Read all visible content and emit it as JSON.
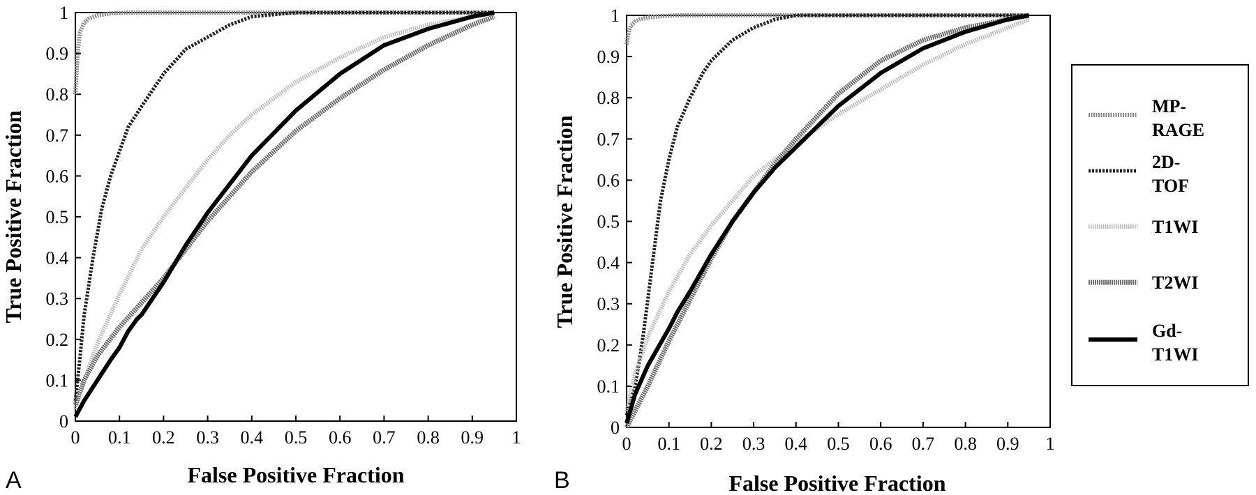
{
  "colors": {
    "MP-RAGE": "#8a8a8a",
    "2D-TOF": "#222222",
    "T1WI": "#b4b4b4",
    "T2WI": "#6e6e6e",
    "Gd-T1WI": "#000000"
  },
  "legend": [
    {
      "line1": "MP-",
      "line2": "RAGE",
      "style": "hatched"
    },
    {
      "line1": "2D-",
      "line2": "TOF",
      "style": "dashed"
    },
    {
      "line1": "T1WI",
      "line2": "",
      "style": "dotted"
    },
    {
      "line1": "T2WI",
      "line2": "",
      "style": "hatched"
    },
    {
      "line1": "Gd-",
      "line2": "T1WI",
      "style": "solid"
    }
  ],
  "chart_data": [
    {
      "type": "line",
      "panel_label": "A",
      "xlabel": "False Positive Fraction",
      "ylabel": "True Positive Fraction",
      "xlim": [
        0,
        1
      ],
      "ylim": [
        0,
        1
      ],
      "xticks": [
        "0",
        "0.1",
        "0.2",
        "0.3",
        "0.4",
        "0.5",
        "0.6",
        "0.7",
        "0.8",
        "0.9",
        "1"
      ],
      "yticks": [
        "0",
        "0.1",
        "0.2",
        "0.3",
        "0.4",
        "0.5",
        "0.6",
        "0.7",
        "0.8",
        "0.9",
        "1"
      ],
      "grid": false,
      "series": [
        {
          "name": "MP-RAGE",
          "x": [
            0,
            0.005,
            0.01,
            0.02,
            0.03,
            0.05,
            0.08,
            0.12,
            0.2,
            0.4,
            0.7,
            0.95
          ],
          "y": [
            0.8,
            0.9,
            0.95,
            0.975,
            0.985,
            0.993,
            0.998,
            1,
            1,
            1,
            1,
            1
          ]
        },
        {
          "name": "2D-TOF",
          "x": [
            0,
            0.01,
            0.02,
            0.04,
            0.06,
            0.08,
            0.1,
            0.12,
            0.15,
            0.2,
            0.25,
            0.3,
            0.35,
            0.4,
            0.5,
            0.6,
            0.95
          ],
          "y": [
            0.05,
            0.15,
            0.26,
            0.4,
            0.52,
            0.6,
            0.66,
            0.72,
            0.77,
            0.85,
            0.91,
            0.94,
            0.97,
            0.99,
            1,
            1,
            1
          ]
        },
        {
          "name": "T1WI",
          "x": [
            0,
            0.02,
            0.05,
            0.1,
            0.15,
            0.2,
            0.25,
            0.3,
            0.35,
            0.4,
            0.5,
            0.6,
            0.7,
            0.8,
            0.9,
            0.95
          ],
          "y": [
            0.03,
            0.1,
            0.19,
            0.31,
            0.42,
            0.5,
            0.57,
            0.64,
            0.7,
            0.75,
            0.83,
            0.89,
            0.94,
            0.97,
            0.99,
            1
          ]
        },
        {
          "name": "T2WI",
          "x": [
            0,
            0.02,
            0.05,
            0.1,
            0.15,
            0.2,
            0.25,
            0.3,
            0.35,
            0.4,
            0.5,
            0.6,
            0.7,
            0.8,
            0.9,
            0.95
          ],
          "y": [
            0.04,
            0.1,
            0.16,
            0.23,
            0.29,
            0.35,
            0.42,
            0.49,
            0.55,
            0.61,
            0.71,
            0.79,
            0.86,
            0.92,
            0.97,
            0.99
          ]
        },
        {
          "name": "Gd-T1WI",
          "x": [
            0,
            0.02,
            0.05,
            0.08,
            0.1,
            0.12,
            0.14,
            0.15,
            0.2,
            0.25,
            0.3,
            0.35,
            0.4,
            0.5,
            0.6,
            0.7,
            0.8,
            0.9,
            0.95
          ],
          "y": [
            0.01,
            0.05,
            0.1,
            0.15,
            0.18,
            0.22,
            0.25,
            0.26,
            0.34,
            0.43,
            0.51,
            0.58,
            0.65,
            0.76,
            0.85,
            0.92,
            0.96,
            0.99,
            1
          ]
        }
      ]
    },
    {
      "type": "line",
      "panel_label": "B",
      "xlabel": "False Positive Fraction",
      "ylabel": "True Positive Fraction",
      "xlim": [
        0,
        1
      ],
      "ylim": [
        0,
        1
      ],
      "xticks": [
        "0",
        "0.1",
        "0.2",
        "0.3",
        "0.4",
        "0.5",
        "0.6",
        "0.7",
        "0.8",
        "0.9",
        "1"
      ],
      "yticks": [
        "0",
        "0.1",
        "0.2",
        "0.3",
        "0.4",
        "0.5",
        "0.6",
        "0.7",
        "0.8",
        "0.9",
        "1"
      ],
      "grid": false,
      "series": [
        {
          "name": "MP-RAGE",
          "x": [
            0,
            0.005,
            0.01,
            0.02,
            0.03,
            0.05,
            0.08,
            0.12,
            0.2,
            0.4,
            0.7,
            0.95
          ],
          "y": [
            0.93,
            0.96,
            0.975,
            0.985,
            0.99,
            0.995,
            0.998,
            1,
            1,
            1,
            1,
            1
          ]
        },
        {
          "name": "2D-TOF",
          "x": [
            0,
            0.02,
            0.03,
            0.04,
            0.05,
            0.06,
            0.07,
            0.08,
            0.1,
            0.12,
            0.15,
            0.18,
            0.2,
            0.25,
            0.3,
            0.35,
            0.4,
            0.6,
            0.95
          ],
          "y": [
            0.03,
            0.1,
            0.16,
            0.23,
            0.31,
            0.39,
            0.47,
            0.55,
            0.65,
            0.73,
            0.8,
            0.86,
            0.89,
            0.94,
            0.97,
            0.99,
            1,
            1,
            1
          ]
        },
        {
          "name": "T1WI",
          "x": [
            0,
            0.02,
            0.05,
            0.1,
            0.15,
            0.2,
            0.25,
            0.3,
            0.35,
            0.4,
            0.5,
            0.6,
            0.7,
            0.8,
            0.9,
            0.95
          ],
          "y": [
            0.04,
            0.13,
            0.22,
            0.33,
            0.42,
            0.49,
            0.55,
            0.61,
            0.65,
            0.69,
            0.76,
            0.82,
            0.88,
            0.93,
            0.97,
            0.99
          ]
        },
        {
          "name": "T2WI",
          "x": [
            0,
            0.02,
            0.05,
            0.1,
            0.15,
            0.2,
            0.25,
            0.3,
            0.35,
            0.4,
            0.5,
            0.6,
            0.7,
            0.8,
            0.9,
            0.95
          ],
          "y": [
            0,
            0.04,
            0.1,
            0.21,
            0.31,
            0.41,
            0.5,
            0.57,
            0.64,
            0.7,
            0.81,
            0.89,
            0.94,
            0.97,
            0.99,
            1
          ]
        },
        {
          "name": "Gd-T1WI",
          "x": [
            0,
            0.02,
            0.05,
            0.1,
            0.12,
            0.15,
            0.2,
            0.25,
            0.3,
            0.35,
            0.4,
            0.5,
            0.6,
            0.7,
            0.8,
            0.9,
            0.95
          ],
          "y": [
            0.01,
            0.08,
            0.15,
            0.24,
            0.28,
            0.33,
            0.42,
            0.5,
            0.57,
            0.63,
            0.68,
            0.78,
            0.86,
            0.92,
            0.96,
            0.99,
            1
          ]
        }
      ]
    }
  ]
}
